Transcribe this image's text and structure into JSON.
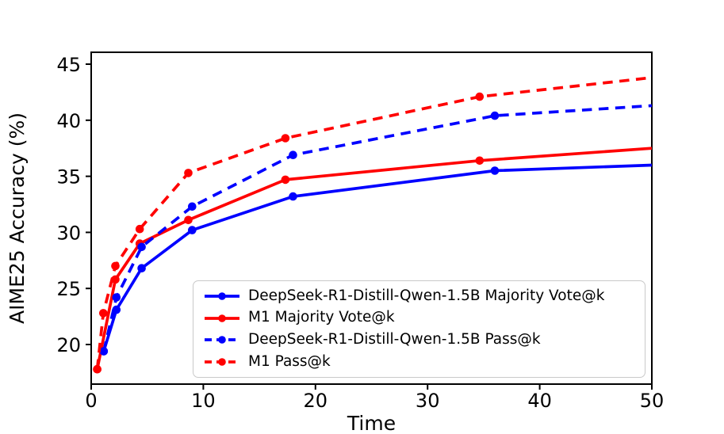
{
  "figure": {
    "description": "Line chart comparing AIME25 accuracy versus inference time for DeepSeek-R1-Distill-Qwen-1.5B and M1 models"
  },
  "chart_data": {
    "type": "line",
    "title": "",
    "xlabel": "Time",
    "ylabel": "AIME25 Accuracy (%)",
    "xlim": [
      0,
      50
    ],
    "ylim": [
      16.47,
      46.06
    ],
    "xticks": [
      0,
      10,
      20,
      30,
      40,
      50
    ],
    "yticks": [
      20,
      25,
      30,
      35,
      40,
      45
    ],
    "grid": false,
    "legend_position": "lower-right-inside",
    "axis_color": "#000000",
    "colors": {
      "blue": "#0000ff",
      "red": "#ff0000"
    },
    "series": [
      {
        "name": "DeepSeek-R1-Distill-Qwen-1.5B Majority Vote@k",
        "color": "#0000ff",
        "style": "solid",
        "x": [
          1.12,
          2.25,
          4.5,
          9,
          18,
          36
        ],
        "y": [
          19.4,
          23.1,
          26.8,
          30.2,
          33.2,
          35.5
        ],
        "clipped_end": {
          "x": 50,
          "y": 36.0
        }
      },
      {
        "name": "M1 Majority Vote@k",
        "color": "#ff0000",
        "style": "solid",
        "x": [
          0.54,
          2.16,
          4.33,
          8.66,
          17.32,
          34.64
        ],
        "y": [
          17.8,
          25.8,
          29.0,
          31.1,
          34.7,
          36.4
        ],
        "clipped_end": {
          "x": 50,
          "y": 37.5
        }
      },
      {
        "name": "DeepSeek-R1-Distill-Qwen-1.5B Pass@k",
        "color": "#0000ff",
        "style": "dashed",
        "x": [
          1.12,
          2.25,
          4.5,
          9,
          18,
          36
        ],
        "y": [
          19.4,
          24.2,
          28.7,
          32.3,
          36.9,
          40.4
        ],
        "clipped_end": {
          "x": 50,
          "y": 41.3
        }
      },
      {
        "name": "M1 Pass@k",
        "color": "#ff0000",
        "style": "dashed",
        "x": [
          0.54,
          1.08,
          2.16,
          4.33,
          8.66,
          17.32,
          34.64
        ],
        "y": [
          17.8,
          22.8,
          27.0,
          30.3,
          35.3,
          38.4,
          42.1
        ],
        "clipped_end": {
          "x": 50,
          "y": 43.8
        }
      }
    ]
  }
}
